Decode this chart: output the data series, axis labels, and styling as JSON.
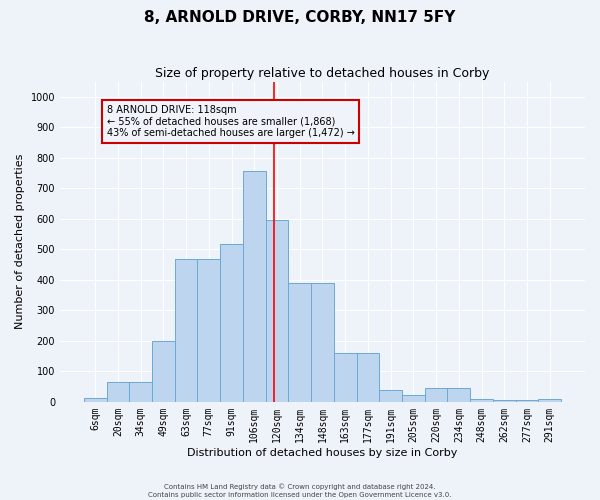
{
  "title": "8, ARNOLD DRIVE, CORBY, NN17 5FY",
  "subtitle": "Size of property relative to detached houses in Corby",
  "xlabel": "Distribution of detached houses by size in Corby",
  "ylabel": "Number of detached properties",
  "categories": [
    "6sqm",
    "20sqm",
    "34sqm",
    "49sqm",
    "63sqm",
    "77sqm",
    "91sqm",
    "106sqm",
    "120sqm",
    "134sqm",
    "148sqm",
    "163sqm",
    "177sqm",
    "191sqm",
    "205sqm",
    "220sqm",
    "234sqm",
    "248sqm",
    "262sqm",
    "277sqm",
    "291sqm"
  ],
  "values": [
    12,
    65,
    65,
    198,
    470,
    470,
    518,
    757,
    595,
    390,
    390,
    160,
    160,
    40,
    22,
    45,
    45,
    10,
    5,
    5,
    8
  ],
  "bar_color": "#bdd5ee",
  "bar_edge_color": "#6aaad4",
  "annotation_line1": "8 ARNOLD DRIVE: 118sqm",
  "annotation_line2": "← 55% of detached houses are smaller (1,868)",
  "annotation_line3": "43% of semi-detached houses are larger (1,472) →",
  "annotation_box_edgecolor": "#cc0000",
  "annotation_box_facecolor": "#f0f4fa",
  "red_line_index": 7.85,
  "ylim": [
    0,
    1050
  ],
  "yticks": [
    0,
    100,
    200,
    300,
    400,
    500,
    600,
    700,
    800,
    900,
    1000
  ],
  "footer_line1": "Contains HM Land Registry data © Crown copyright and database right 2024.",
  "footer_line2": "Contains public sector information licensed under the Open Government Licence v3.0.",
  "background_color": "#eef2f9",
  "grid_color": "#ffffff",
  "title_fontsize": 11,
  "subtitle_fontsize": 9,
  "axis_label_fontsize": 8,
  "tick_fontsize": 7,
  "annotation_fontsize": 7,
  "footer_fontsize": 5
}
